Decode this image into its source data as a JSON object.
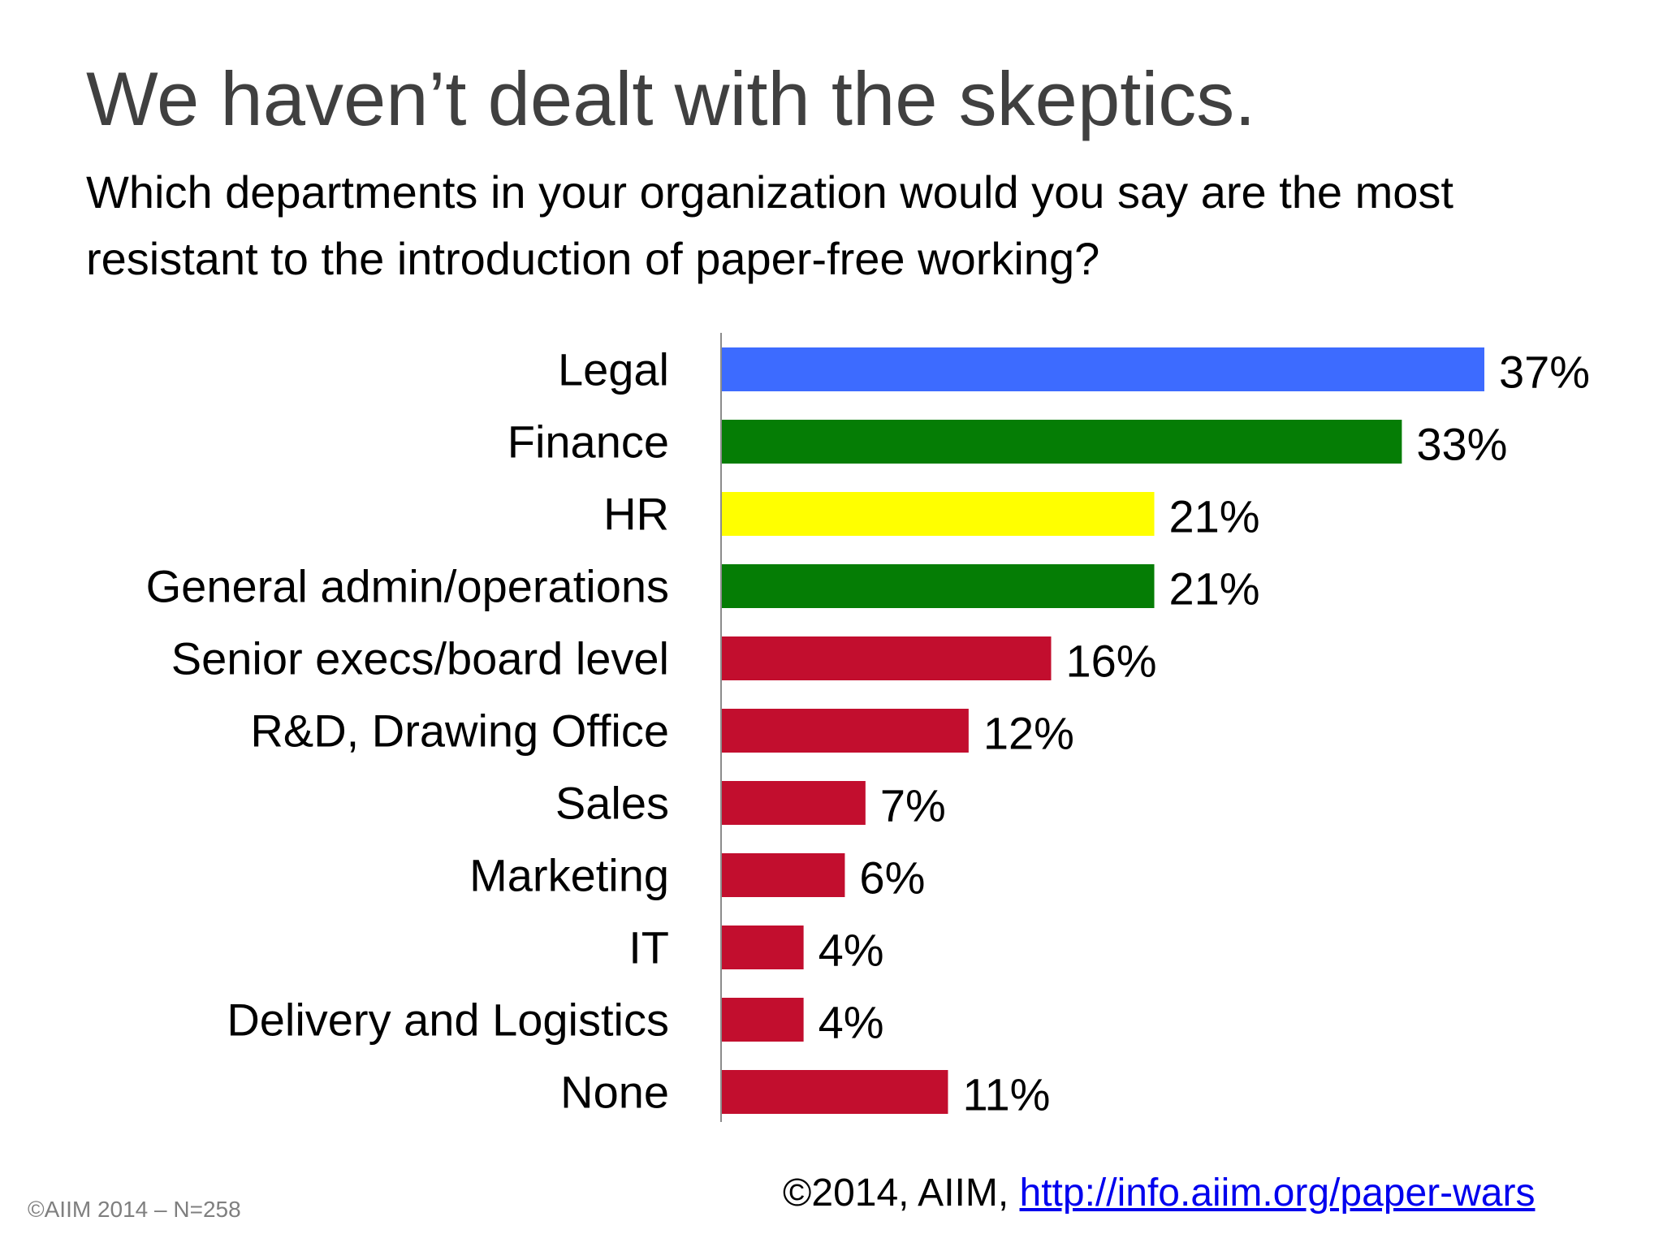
{
  "slide": {
    "title": "We haven’t dealt with the skeptics.",
    "question": "Which departments in your organization would you say are the most resistant to the introduction of paper-free working?"
  },
  "chart_data": {
    "type": "bar",
    "orientation": "horizontal",
    "title": "",
    "xlabel": "",
    "ylabel": "",
    "xlim": [
      0,
      40
    ],
    "grid": false,
    "legend": "none",
    "categories": [
      "Legal",
      "Finance",
      "HR",
      "General admin/operations",
      "Senior execs/board level",
      "R&D, Drawing Office",
      "Sales",
      "Marketing",
      "IT",
      "Delivery and Logistics",
      "None"
    ],
    "values": [
      37,
      33,
      21,
      21,
      16,
      12,
      7,
      6,
      4,
      4,
      11
    ],
    "value_labels": [
      "37%",
      "33%",
      "21%",
      "21%",
      "16%",
      "12%",
      "7%",
      "6%",
      "4%",
      "4%",
      "11%"
    ],
    "colors": [
      "#3d6bff",
      "#057d05",
      "#ffff00",
      "#057d05",
      "#c20e2e",
      "#c20e2e",
      "#c20e2e",
      "#c20e2e",
      "#c20e2e",
      "#c20e2e",
      "#c20e2e"
    ]
  },
  "footer": {
    "source_note": "©AIIM 2014 – N=258",
    "copyright": "©2014, AIIM, ",
    "link_text": "http://info.aiim.org/paper-wars"
  }
}
